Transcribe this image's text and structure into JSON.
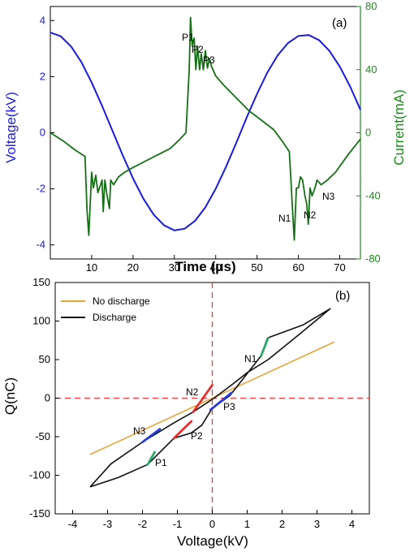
{
  "chart_data": [
    {
      "panel": "(a)",
      "type": "line",
      "xlabel": "Time (μs)",
      "ylabel": "Voltage(kV)",
      "y2label": "Current(mA)",
      "xlim": [
        0,
        75
      ],
      "ylim": [
        -4.5,
        4.5
      ],
      "y2lim": [
        -80,
        80
      ],
      "xticks": [
        10,
        20,
        30,
        40,
        50,
        60,
        70
      ],
      "yticks": [
        -4,
        -2,
        0,
        2,
        4
      ],
      "y2ticks": [
        -80,
        -40,
        0,
        40,
        80
      ],
      "colors": {
        "voltage": "#1a1adc",
        "current": "#157015",
        "y2axis": "#1b8c1b"
      },
      "series": [
        {
          "axis": "left",
          "x": [
            0,
            2.5,
            5,
            7.5,
            10,
            12.5,
            15,
            17.5,
            20,
            22.5,
            25,
            27.5,
            30,
            32.5,
            35,
            37.5,
            40,
            42.5,
            45,
            47.5,
            50,
            52.5,
            55,
            57.5,
            60,
            62.5,
            65,
            67.5,
            70,
            72.5,
            75
          ],
          "y": [
            3.57,
            3.44,
            3.08,
            2.52,
            1.79,
            0.96,
            0.08,
            -0.8,
            -1.63,
            -2.35,
            -2.92,
            -3.3,
            -3.48,
            -3.42,
            -3.14,
            -2.66,
            -2.0,
            -1.21,
            -0.35,
            0.54,
            1.39,
            2.15,
            2.76,
            3.2,
            3.45,
            3.48,
            3.3,
            2.92,
            2.36,
            1.65,
            0.82
          ]
        },
        {
          "axis": "right",
          "x": [
            0,
            3,
            6,
            8.4,
            8.6,
            8.9,
            9.3,
            10,
            10.4,
            11,
            11.5,
            12.5,
            12.8,
            13.2,
            13.6,
            14.3,
            14.6,
            15.3,
            16.5,
            18,
            20,
            23,
            26,
            29,
            31,
            32.8,
            33.2,
            33.6,
            33.9,
            34.3,
            34.8,
            35.2,
            35.6,
            36.1,
            36.5,
            37,
            37.5,
            38,
            38.5,
            39,
            40,
            42,
            45,
            48,
            51,
            54,
            56,
            57.8,
            58.2,
            58.6,
            59,
            59.5,
            60,
            60.5,
            61,
            61.6,
            62,
            62.4,
            62.8,
            63.3,
            64,
            64.5,
            65.5,
            67,
            69,
            72,
            75
          ],
          "y": [
            0,
            -5,
            -11,
            -15,
            -30,
            -50,
            -65,
            -25,
            -35,
            -27,
            -38,
            -30,
            -50,
            -30,
            -38,
            -48,
            -30,
            -33,
            -28,
            -25,
            -22,
            -18,
            -14,
            -10,
            -5,
            0,
            20,
            40,
            73,
            55,
            60,
            40,
            55,
            40,
            50,
            40,
            52,
            41,
            47,
            42,
            36,
            30,
            22,
            14,
            8,
            2,
            -5,
            -12,
            -30,
            -50,
            -68,
            -35,
            -35,
            -28,
            -30,
            -40,
            -45,
            -58,
            -35,
            -40,
            -35,
            -30,
            -33,
            -30,
            -25,
            -14,
            -4
          ]
        }
      ],
      "annotations": [
        "P1",
        "P2",
        "P3",
        "N1",
        "N2",
        "N3"
      ]
    },
    {
      "panel": "(b)",
      "type": "line",
      "xlabel": "Voltage(kV)",
      "ylabel": "Q(nC)",
      "xlim": [
        -4.5,
        4.5
      ],
      "ylim": [
        -150,
        150
      ],
      "xticks": [
        -4,
        -3,
        -2,
        -1,
        0,
        1,
        2,
        3,
        4
      ],
      "yticks": [
        -150,
        -100,
        -50,
        0,
        50,
        100,
        150
      ],
      "reference_lines": {
        "x": 0,
        "y": 0,
        "color": "#ee3b3b"
      },
      "legend": {
        "position": "top-left"
      },
      "colors": {
        "no_discharge": "#e8a53a",
        "discharge": "#111111",
        "highlight_green": "#2aa86a",
        "highlight_red": "#e53030",
        "highlight_blue": "#2a3fd6"
      },
      "series": [
        {
          "name": "No discharge",
          "x": [
            -3.5,
            3.5
          ],
          "y": [
            -73,
            73
          ]
        },
        {
          "name": "Discharge",
          "x": [
            -3.5,
            -2.7,
            -1.85,
            -1.1,
            -0.6,
            -0.3,
            0,
            0.5,
            1.4,
            1.58,
            2.6,
            3.38,
            2.5,
            1.6,
            1.0,
            0.55,
            0.05,
            -0.55,
            -1.1,
            -2.0,
            -2.9,
            -3.5
          ],
          "y": [
            -115,
            -103,
            -86,
            -52,
            -45,
            -35,
            -13,
            3,
            55,
            78,
            95,
            116,
            83,
            50,
            33,
            17,
            0,
            -18,
            -32,
            -57,
            -85,
            -115
          ]
        }
      ],
      "highlights": [
        {
          "label": "P1",
          "color": "green",
          "x": [
            -1.85,
            -1.65
          ],
          "y": [
            -86,
            -70
          ]
        },
        {
          "label": "P2",
          "color": "red",
          "x": [
            -1.1,
            -0.6
          ],
          "y": [
            -52,
            -30
          ]
        },
        {
          "label": "P3",
          "color": "blue",
          "x": [
            -0.05,
            0.55
          ],
          "y": [
            -15,
            7
          ]
        },
        {
          "label": "N1",
          "color": "green",
          "x": [
            1.4,
            1.6
          ],
          "y": [
            55,
            78
          ]
        },
        {
          "label": "N2",
          "color": "red",
          "x": [
            -0.55,
            0
          ],
          "y": [
            -18,
            17
          ]
        },
        {
          "label": "N3",
          "color": "blue",
          "x": [
            -2.0,
            -1.5
          ],
          "y": [
            -57,
            -40
          ]
        }
      ],
      "annotations": [
        "P1",
        "P2",
        "P3",
        "N1",
        "N2",
        "N3"
      ]
    }
  ]
}
